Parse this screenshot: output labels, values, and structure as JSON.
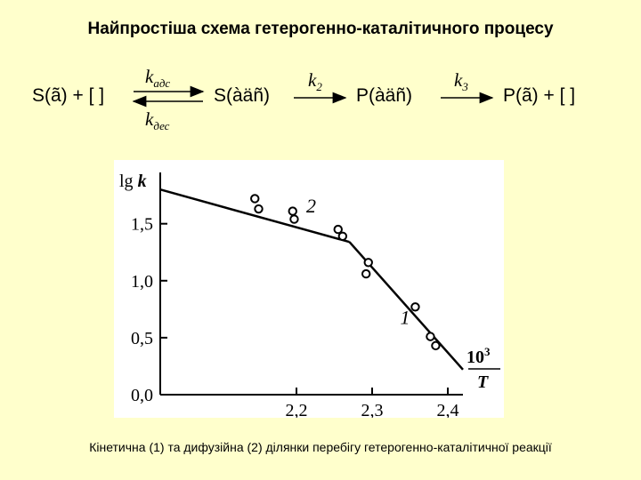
{
  "title": "Найпростіша схема гетерогенно-каталітичного процесу",
  "scheme": {
    "reactant": "S(ã) + [  ]",
    "k_ads": "k",
    "k_ads_sub": "адс",
    "k_des": "k",
    "k_des_sub": "дес",
    "adsorbed_reactant": "S(àäñ)",
    "k2": "k",
    "k2_sub": "2",
    "adsorbed_product": "P(àäñ)",
    "k3": "k",
    "k3_sub": "3",
    "product": "P(ã) + [  ]"
  },
  "chart_data": {
    "type": "scatter",
    "ylabel_prefix": "lg ",
    "ylabel_var": "k",
    "xlabel_num": "10",
    "xlabel_exp": "3",
    "xlabel_den": "T",
    "xlim": [
      2.02,
      2.42
    ],
    "ylim": [
      0.0,
      1.95
    ],
    "xticks": [
      2.2,
      2.3,
      2.4
    ],
    "xtick_labels": [
      "2,2",
      "2,3",
      "2,4"
    ],
    "yticks": [
      0.0,
      0.5,
      1.0,
      1.5
    ],
    "ytick_labels": [
      "0,0",
      "0,5",
      "1,0",
      "1,5"
    ],
    "points": [
      {
        "x": 2.145,
        "y": 1.72
      },
      {
        "x": 2.15,
        "y": 1.63
      },
      {
        "x": 2.195,
        "y": 1.61
      },
      {
        "x": 2.197,
        "y": 1.54
      },
      {
        "x": 2.255,
        "y": 1.45
      },
      {
        "x": 2.261,
        "y": 1.39
      },
      {
        "x": 2.295,
        "y": 1.16
      },
      {
        "x": 2.292,
        "y": 1.06
      },
      {
        "x": 2.357,
        "y": 0.77
      },
      {
        "x": 2.377,
        "y": 0.51
      },
      {
        "x": 2.384,
        "y": 0.43
      }
    ],
    "lines": [
      {
        "label": "2",
        "x": [
          2.02,
          2.27
        ],
        "y": [
          1.8,
          1.34
        ]
      },
      {
        "label": "1",
        "x": [
          2.27,
          2.42
        ],
        "y": [
          1.34,
          0.22
        ]
      }
    ],
    "grid": false
  },
  "caption": "Кінетична (1) та дифузійна (2) ділянки перебігу гетерогенно-каталітичної реакції"
}
